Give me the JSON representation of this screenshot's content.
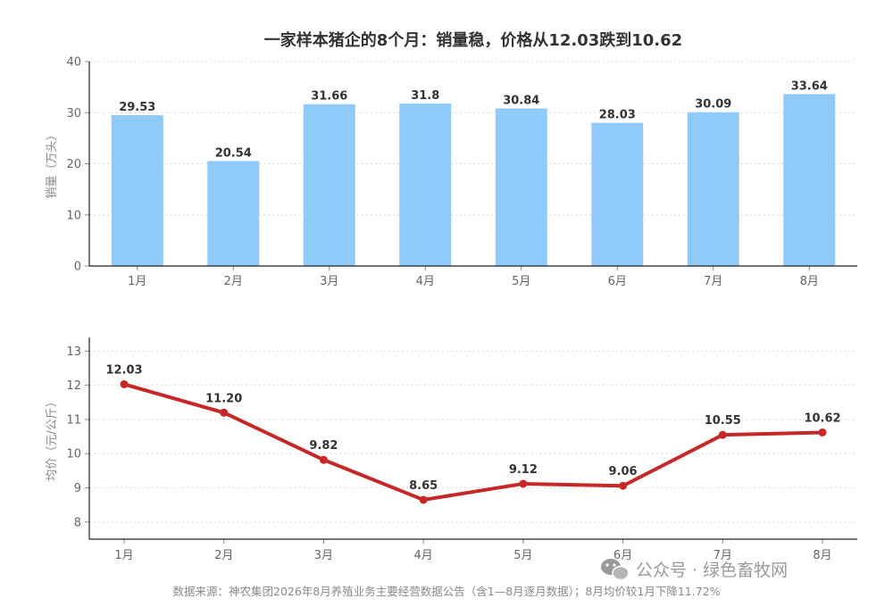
{
  "chart_data": [
    {
      "type": "bar",
      "title": "一家样本猪企的8个月：销量稳，价格从12.03跌到10.62",
      "categories": [
        "1月",
        "2月",
        "3月",
        "4月",
        "5月",
        "6月",
        "7月",
        "8月"
      ],
      "values": [
        29.53,
        20.54,
        31.66,
        31.8,
        30.84,
        28.03,
        30.09,
        33.64
      ],
      "value_labels": [
        "29.53",
        "20.54",
        "31.66",
        "31.8",
        "30.84",
        "28.03",
        "30.09",
        "33.64"
      ],
      "ylabel": "销量（万头）",
      "ylim": [
        0,
        40
      ],
      "yticks": [
        0,
        10,
        20,
        30,
        40
      ],
      "grid": true,
      "color": "#90CAF9"
    },
    {
      "type": "line",
      "categories": [
        "1月",
        "2月",
        "3月",
        "4月",
        "5月",
        "6月",
        "7月",
        "8月"
      ],
      "values": [
        12.03,
        11.2,
        9.82,
        8.65,
        9.12,
        9.06,
        10.55,
        10.62
      ],
      "value_labels": [
        "12.03",
        "11.20",
        "9.82",
        "8.65",
        "9.12",
        "9.06",
        "10.55",
        "10.62"
      ],
      "ylabel": "均价（元/公斤）",
      "ylim": [
        7.5,
        13.4
      ],
      "yticks": [
        8,
        9,
        10,
        11,
        12,
        13
      ],
      "grid": true,
      "color": "#C62828"
    }
  ],
  "footer": {
    "source": "数据来源：神农集团2026年8月养殖业务主要经营数据公告（含1—8月逐月数据）；8月均价较1月下降11.72%",
    "watermark": "公众号 · 绿色畜牧网",
    "watermark_icon": "wechat-icon"
  }
}
